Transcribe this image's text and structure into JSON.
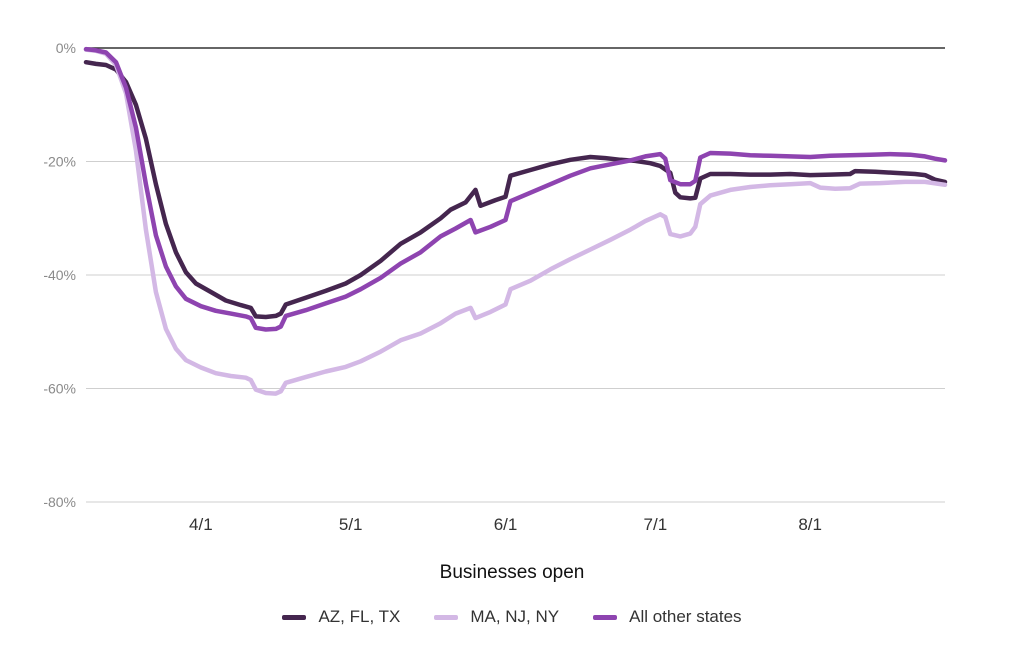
{
  "chart_data": {
    "type": "line",
    "xlabel": "Businesses open",
    "ylabel": "",
    "ylim": [
      -80,
      0
    ],
    "yticks": [
      0,
      -20,
      -40,
      -60,
      -80
    ],
    "ytick_labels": [
      "0%",
      "-20%",
      "-40%",
      "-60%",
      "-80%"
    ],
    "x_range": [
      "2020-03-09",
      "2020-08-28"
    ],
    "xticks": [
      "2020-04-01",
      "2020-05-01",
      "2020-06-01",
      "2020-07-01",
      "2020-08-01"
    ],
    "xtick_labels": [
      "4/1",
      "5/1",
      "6/1",
      "7/1",
      "8/1"
    ],
    "grid": true,
    "legend_position": "bottom",
    "series": [
      {
        "name": "AZ, FL, TX",
        "color": "#45264f",
        "points": [
          [
            "2020-03-09",
            -2.5
          ],
          [
            "2020-03-11",
            -2.8
          ],
          [
            "2020-03-13",
            -3.0
          ],
          [
            "2020-03-15",
            -3.8
          ],
          [
            "2020-03-17",
            -6
          ],
          [
            "2020-03-19",
            -10
          ],
          [
            "2020-03-21",
            -16
          ],
          [
            "2020-03-23",
            -24
          ],
          [
            "2020-03-25",
            -31
          ],
          [
            "2020-03-27",
            -36
          ],
          [
            "2020-03-29",
            -39.5
          ],
          [
            "2020-03-31",
            -41.5
          ],
          [
            "2020-04-03",
            -43
          ],
          [
            "2020-04-06",
            -44.5
          ],
          [
            "2020-04-09",
            -45.3
          ],
          [
            "2020-04-11",
            -45.8
          ],
          [
            "2020-04-12",
            -47.3
          ],
          [
            "2020-04-14",
            -47.4
          ],
          [
            "2020-04-16",
            -47.2
          ],
          [
            "2020-04-17",
            -46.8
          ],
          [
            "2020-04-18",
            -45.2
          ],
          [
            "2020-04-22",
            -44
          ],
          [
            "2020-04-26",
            -42.8
          ],
          [
            "2020-04-30",
            -41.5
          ],
          [
            "2020-05-03",
            -40
          ],
          [
            "2020-05-07",
            -37.5
          ],
          [
            "2020-05-11",
            -34.5
          ],
          [
            "2020-05-15",
            -32.5
          ],
          [
            "2020-05-19",
            -30
          ],
          [
            "2020-05-21",
            -28.5
          ],
          [
            "2020-05-24",
            -27.2
          ],
          [
            "2020-05-26",
            -25
          ],
          [
            "2020-05-27",
            -27.8
          ],
          [
            "2020-05-30",
            -26.8
          ],
          [
            "2020-06-01",
            -26.2
          ],
          [
            "2020-06-02",
            -22.5
          ],
          [
            "2020-06-06",
            -21.5
          ],
          [
            "2020-06-10",
            -20.5
          ],
          [
            "2020-06-14",
            -19.7
          ],
          [
            "2020-06-18",
            -19.2
          ],
          [
            "2020-06-21",
            -19.4
          ],
          [
            "2020-06-24",
            -19.7
          ],
          [
            "2020-06-27",
            -19.9
          ],
          [
            "2020-06-30",
            -20.3
          ],
          [
            "2020-07-02",
            -20.8
          ],
          [
            "2020-07-04",
            -22
          ],
          [
            "2020-07-05",
            -25.5
          ],
          [
            "2020-07-06",
            -26.3
          ],
          [
            "2020-07-08",
            -26.5
          ],
          [
            "2020-07-09",
            -26.4
          ],
          [
            "2020-07-10",
            -23
          ],
          [
            "2020-07-12",
            -22.2
          ],
          [
            "2020-07-16",
            -22.2
          ],
          [
            "2020-07-20",
            -22.3
          ],
          [
            "2020-07-24",
            -22.3
          ],
          [
            "2020-07-28",
            -22.2
          ],
          [
            "2020-08-01",
            -22.4
          ],
          [
            "2020-08-05",
            -22.3
          ],
          [
            "2020-08-09",
            -22.2
          ],
          [
            "2020-08-10",
            -21.7
          ],
          [
            "2020-08-14",
            -21.8
          ],
          [
            "2020-08-18",
            -22
          ],
          [
            "2020-08-22",
            -22.2
          ],
          [
            "2020-08-24",
            -22.4
          ],
          [
            "2020-08-26",
            -23.2
          ],
          [
            "2020-08-28",
            -23.6
          ]
        ]
      },
      {
        "name": "MA, NJ, NY",
        "color": "#d3b8e5",
        "points": [
          [
            "2020-03-09",
            -0.3
          ],
          [
            "2020-03-11",
            -0.5
          ],
          [
            "2020-03-13",
            -1.0
          ],
          [
            "2020-03-15",
            -3
          ],
          [
            "2020-03-17",
            -8
          ],
          [
            "2020-03-19",
            -18
          ],
          [
            "2020-03-21",
            -32
          ],
          [
            "2020-03-23",
            -43
          ],
          [
            "2020-03-25",
            -49.5
          ],
          [
            "2020-03-27",
            -53
          ],
          [
            "2020-03-29",
            -55
          ],
          [
            "2020-04-01",
            -56.3
          ],
          [
            "2020-04-04",
            -57.3
          ],
          [
            "2020-04-07",
            -57.8
          ],
          [
            "2020-04-10",
            -58.1
          ],
          [
            "2020-04-11",
            -58.5
          ],
          [
            "2020-04-12",
            -60.2
          ],
          [
            "2020-04-14",
            -60.8
          ],
          [
            "2020-04-16",
            -60.9
          ],
          [
            "2020-04-17",
            -60.5
          ],
          [
            "2020-04-18",
            -59
          ],
          [
            "2020-04-22",
            -58
          ],
          [
            "2020-04-26",
            -57
          ],
          [
            "2020-04-30",
            -56.2
          ],
          [
            "2020-05-03",
            -55.2
          ],
          [
            "2020-05-07",
            -53.5
          ],
          [
            "2020-05-11",
            -51.5
          ],
          [
            "2020-05-15",
            -50.3
          ],
          [
            "2020-05-19",
            -48.5
          ],
          [
            "2020-05-22",
            -46.8
          ],
          [
            "2020-05-25",
            -45.8
          ],
          [
            "2020-05-26",
            -47.6
          ],
          [
            "2020-05-29",
            -46.5
          ],
          [
            "2020-06-01",
            -45.2
          ],
          [
            "2020-06-02",
            -42.5
          ],
          [
            "2020-06-06",
            -41
          ],
          [
            "2020-06-10",
            -39
          ],
          [
            "2020-06-14",
            -37.2
          ],
          [
            "2020-06-18",
            -35.5
          ],
          [
            "2020-06-22",
            -33.8
          ],
          [
            "2020-06-26",
            -32
          ],
          [
            "2020-06-29",
            -30.5
          ],
          [
            "2020-07-02",
            -29.3
          ],
          [
            "2020-07-03",
            -29.8
          ],
          [
            "2020-07-04",
            -32.8
          ],
          [
            "2020-07-06",
            -33.2
          ],
          [
            "2020-07-08",
            -32.7
          ],
          [
            "2020-07-09",
            -31.5
          ],
          [
            "2020-07-10",
            -27.5
          ],
          [
            "2020-07-12",
            -26
          ],
          [
            "2020-07-16",
            -25
          ],
          [
            "2020-07-20",
            -24.5
          ],
          [
            "2020-07-24",
            -24.2
          ],
          [
            "2020-07-28",
            -24
          ],
          [
            "2020-08-01",
            -23.8
          ],
          [
            "2020-08-03",
            -24.6
          ],
          [
            "2020-08-06",
            -24.8
          ],
          [
            "2020-08-09",
            -24.7
          ],
          [
            "2020-08-11",
            -23.9
          ],
          [
            "2020-08-15",
            -23.8
          ],
          [
            "2020-08-20",
            -23.6
          ],
          [
            "2020-08-24",
            -23.6
          ],
          [
            "2020-08-28",
            -24.1
          ]
        ]
      },
      {
        "name": "All other states",
        "color": "#8e44b0",
        "points": [
          [
            "2020-03-09",
            -0.2
          ],
          [
            "2020-03-11",
            -0.4
          ],
          [
            "2020-03-13",
            -0.8
          ],
          [
            "2020-03-15",
            -2.5
          ],
          [
            "2020-03-17",
            -7
          ],
          [
            "2020-03-19",
            -14
          ],
          [
            "2020-03-21",
            -24
          ],
          [
            "2020-03-23",
            -33
          ],
          [
            "2020-03-25",
            -38.5
          ],
          [
            "2020-03-27",
            -42
          ],
          [
            "2020-03-29",
            -44.2
          ],
          [
            "2020-04-01",
            -45.5
          ],
          [
            "2020-04-04",
            -46.3
          ],
          [
            "2020-04-07",
            -46.8
          ],
          [
            "2020-04-10",
            -47.3
          ],
          [
            "2020-04-11",
            -47.6
          ],
          [
            "2020-04-12",
            -49.3
          ],
          [
            "2020-04-14",
            -49.6
          ],
          [
            "2020-04-16",
            -49.5
          ],
          [
            "2020-04-17",
            -49.1
          ],
          [
            "2020-04-18",
            -47.2
          ],
          [
            "2020-04-22",
            -46.2
          ],
          [
            "2020-04-26",
            -45
          ],
          [
            "2020-04-30",
            -43.8
          ],
          [
            "2020-05-03",
            -42.5
          ],
          [
            "2020-05-07",
            -40.5
          ],
          [
            "2020-05-11",
            -38
          ],
          [
            "2020-05-15",
            -36
          ],
          [
            "2020-05-19",
            -33.2
          ],
          [
            "2020-05-22",
            -31.8
          ],
          [
            "2020-05-25",
            -30.3
          ],
          [
            "2020-05-26",
            -32.5
          ],
          [
            "2020-05-29",
            -31.5
          ],
          [
            "2020-06-01",
            -30.3
          ],
          [
            "2020-06-02",
            -27
          ],
          [
            "2020-06-06",
            -25.5
          ],
          [
            "2020-06-10",
            -24
          ],
          [
            "2020-06-14",
            -22.5
          ],
          [
            "2020-06-18",
            -21.2
          ],
          [
            "2020-06-22",
            -20.5
          ],
          [
            "2020-06-26",
            -19.8
          ],
          [
            "2020-06-29",
            -19.1
          ],
          [
            "2020-07-02",
            -18.7
          ],
          [
            "2020-07-03",
            -19.5
          ],
          [
            "2020-07-04",
            -23.3
          ],
          [
            "2020-07-06",
            -24
          ],
          [
            "2020-07-08",
            -24
          ],
          [
            "2020-07-09",
            -23.4
          ],
          [
            "2020-07-10",
            -19.3
          ],
          [
            "2020-07-12",
            -18.5
          ],
          [
            "2020-07-16",
            -18.6
          ],
          [
            "2020-07-20",
            -18.9
          ],
          [
            "2020-07-24",
            -19
          ],
          [
            "2020-07-28",
            -19.1
          ],
          [
            "2020-08-01",
            -19.2
          ],
          [
            "2020-08-05",
            -19
          ],
          [
            "2020-08-09",
            -18.9
          ],
          [
            "2020-08-13",
            -18.8
          ],
          [
            "2020-08-17",
            -18.7
          ],
          [
            "2020-08-21",
            -18.8
          ],
          [
            "2020-08-24",
            -19.1
          ],
          [
            "2020-08-26",
            -19.5
          ],
          [
            "2020-08-28",
            -19.8
          ]
        ]
      }
    ]
  },
  "legend": {
    "items": [
      {
        "label": "AZ, FL, TX",
        "color": "#45264f"
      },
      {
        "label": "MA, NJ, NY",
        "color": "#d3b8e5"
      },
      {
        "label": "All other states",
        "color": "#8e44b0"
      }
    ]
  }
}
